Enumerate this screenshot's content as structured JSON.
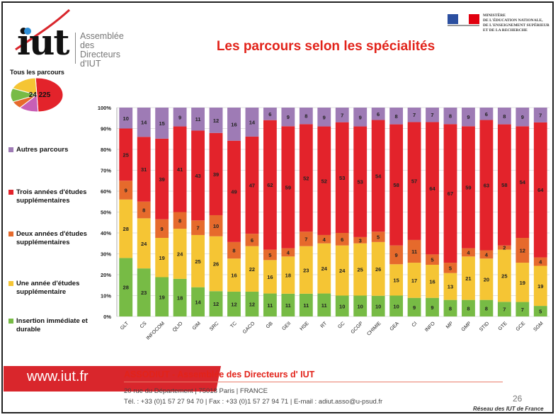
{
  "header": {
    "logo_text": [
      "Assemblée",
      "des Directeurs",
      "d'IUT"
    ],
    "logo_word": "iut",
    "ministry": [
      "MINISTÈRE",
      "DE L'ÉDUCATION NATIONALE,",
      "DE L'ENSEIGNEMENT SUPÉRIEUR",
      "ET DE LA RECHERCHE"
    ],
    "title": "Les parcours selon les spécialités"
  },
  "pie": {
    "title": "Tous les parcours",
    "label": "24 225",
    "note": "slice shares estimated visually",
    "slices": [
      {
        "color": "#e3232b",
        "share": 0.5
      },
      {
        "color": "#f5c534",
        "share": 0.18
      },
      {
        "color": "#77bb45",
        "share": 0.13
      },
      {
        "color": "#e66a2c",
        "share": 0.07
      },
      {
        "color": "#c85fb6",
        "share": 0.12
      }
    ]
  },
  "chart_data": {
    "type": "bar",
    "stacked": "percent",
    "categories": [
      "GLT",
      "CS",
      "INFOCOM",
      "QLIO",
      "GIM",
      "SRC",
      "TC",
      "GACO",
      "GB",
      "GEII",
      "HSE",
      "RT",
      "GC",
      "GCGP",
      "CHIMIE",
      "GEA",
      "CI",
      "INFO",
      "MP",
      "GMP",
      "STID",
      "GTE",
      "GCE",
      "SGM"
    ],
    "ylim": [
      0,
      100
    ],
    "yticks": [
      "0%",
      "10%",
      "20%",
      "30%",
      "40%",
      "50%",
      "60%",
      "70%",
      "80%",
      "90%",
      "100%"
    ],
    "grid": true,
    "legend_position": "left",
    "series": [
      {
        "name": "Insertion immédiate et durable",
        "color": "#77bb45",
        "values": [
          28,
          23,
          19,
          18,
          14,
          12,
          12,
          12,
          11,
          11,
          11,
          11,
          10,
          10,
          10,
          10,
          9,
          9,
          8,
          8,
          8,
          7,
          7,
          5
        ]
      },
      {
        "name": "Une année d'études supplémentaire",
        "color": "#f5c534",
        "values": [
          28,
          24,
          19,
          24,
          25,
          26,
          16,
          22,
          16,
          18,
          23,
          24,
          24,
          25,
          26,
          15,
          17,
          16,
          13,
          21,
          20,
          25,
          19,
          19
        ]
      },
      {
        "name": "Deux années d'études supplémentaires",
        "color": "#e66a2c",
        "values": [
          9,
          8,
          9,
          8,
          7,
          10,
          8,
          6,
          5,
          4,
          7,
          4,
          6,
          3,
          5,
          9,
          11,
          5,
          5,
          4,
          4,
          2,
          12,
          4
        ]
      },
      {
        "name": "Trois années d'études supplémentaires",
        "color": "#e3232b",
        "values": [
          25,
          31,
          39,
          41,
          43,
          39,
          49,
          47,
          62,
          59,
          52,
          52,
          53,
          53,
          54,
          58,
          57,
          64,
          67,
          59,
          63,
          58,
          54,
          64
        ]
      },
      {
        "name": "Autres parcours",
        "color": "#9e7bb5",
        "values": [
          10,
          14,
          15,
          9,
          11,
          12,
          16,
          14,
          6,
          9,
          8,
          9,
          7,
          9,
          6,
          8,
          7,
          7,
          8,
          9,
          6,
          8,
          9,
          7
        ]
      }
    ]
  },
  "footer": {
    "url": "www.iut.fr",
    "org": "ASSODIUT - Assemblée des Directeurs d' IUT",
    "address": "20 rue du Département | 75018 Paris | FRANCE",
    "contact": "Tél. : +33 (0)1 57 27 94 70 | Fax : +33 (0)1 57 27 94 71 | E-mail : adiut.asso@u-psud.fr",
    "page": "26",
    "network": "Réseau des IUT de France"
  }
}
